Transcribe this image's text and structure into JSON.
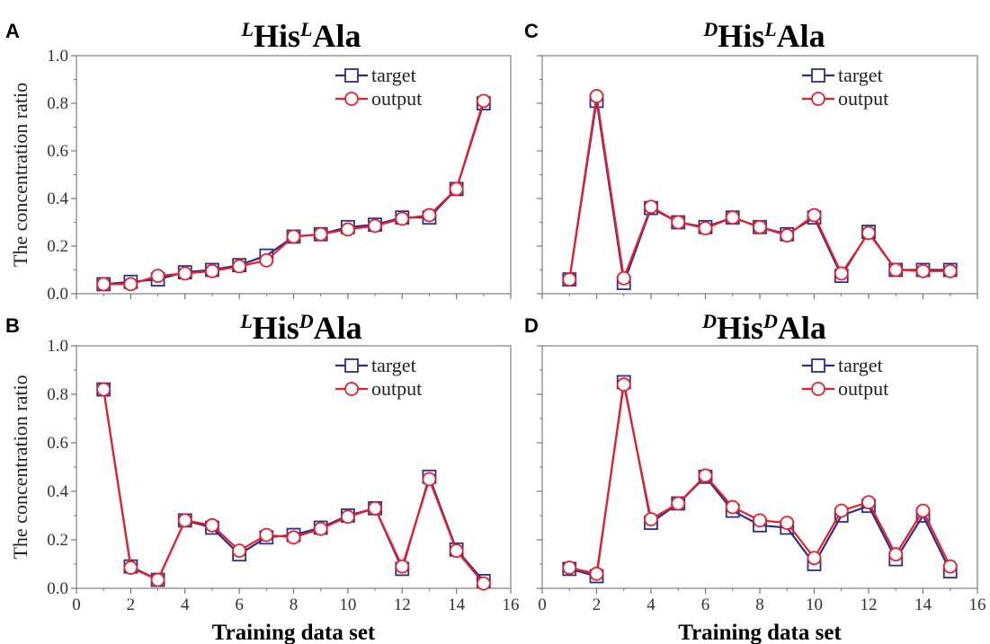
{
  "figure": {
    "shared_ylabel": "The concentration ratio",
    "shared_xlabel": "Training data set"
  },
  "chart_data": [
    {
      "panel": "A",
      "type": "line",
      "title": {
        "sup1": "L",
        "base1": "His",
        "sup2": "L",
        "base2": "Ala"
      },
      "xlabel": "",
      "ylabel": "The concentration ratio",
      "xlim": [
        0,
        16
      ],
      "ylim": [
        0,
        1.0
      ],
      "xticks": [
        "0",
        "2",
        "4",
        "6",
        "8",
        "10",
        "12",
        "14",
        "16"
      ],
      "yticks": [
        "0.0",
        "0.2",
        "0.4",
        "0.6",
        "0.8",
        "1.0"
      ],
      "show_xtick_labels": false,
      "show_ytick_labels": true,
      "show_ylabel": true,
      "show_xlabel": false,
      "legend": "top-right",
      "grid": false,
      "x": [
        1,
        2,
        3,
        4,
        5,
        6,
        7,
        8,
        9,
        10,
        11,
        12,
        13,
        14,
        15
      ],
      "series": [
        {
          "name": "target",
          "marker": "square",
          "color": "#2b2d8f",
          "values": [
            0.04,
            0.05,
            0.06,
            0.09,
            0.1,
            0.12,
            0.16,
            0.24,
            0.25,
            0.28,
            0.29,
            0.32,
            0.32,
            0.44,
            0.8
          ]
        },
        {
          "name": "output",
          "marker": "circle",
          "color": "#e8202a",
          "values": [
            0.04,
            0.04,
            0.075,
            0.085,
            0.095,
            0.115,
            0.14,
            0.24,
            0.25,
            0.27,
            0.285,
            0.315,
            0.33,
            0.44,
            0.81
          ]
        }
      ]
    },
    {
      "panel": "C",
      "type": "line",
      "title": {
        "sup1": "D",
        "base1": "His",
        "sup2": "L",
        "base2": "Ala"
      },
      "xlabel": "",
      "ylabel": "",
      "xlim": [
        0,
        16
      ],
      "ylim": [
        0,
        1.0
      ],
      "xticks": [
        "0",
        "2",
        "4",
        "6",
        "8",
        "10",
        "12",
        "14",
        "16"
      ],
      "yticks": [
        "0.0",
        "0.2",
        "0.4",
        "0.6",
        "0.8",
        "1.0"
      ],
      "show_xtick_labels": false,
      "show_ytick_labels": false,
      "show_ylabel": false,
      "show_xlabel": false,
      "legend": "top-right",
      "grid": false,
      "x": [
        1,
        2,
        3,
        4,
        5,
        6,
        7,
        8,
        9,
        10,
        11,
        12,
        13,
        14,
        15
      ],
      "series": [
        {
          "name": "target",
          "marker": "square",
          "color": "#2b2d8f",
          "values": [
            0.06,
            0.81,
            0.045,
            0.36,
            0.3,
            0.28,
            0.32,
            0.28,
            0.25,
            0.32,
            0.075,
            0.26,
            0.1,
            0.1,
            0.1
          ]
        },
        {
          "name": "output",
          "marker": "circle",
          "color": "#e8202a",
          "values": [
            0.06,
            0.83,
            0.065,
            0.365,
            0.3,
            0.275,
            0.32,
            0.28,
            0.245,
            0.33,
            0.085,
            0.255,
            0.1,
            0.095,
            0.095
          ]
        }
      ]
    },
    {
      "panel": "B",
      "type": "line",
      "title": {
        "sup1": "L",
        "base1": "His",
        "sup2": "D",
        "base2": "Ala"
      },
      "xlabel": "Training data set",
      "ylabel": "The concentration ratio",
      "xlim": [
        0,
        16
      ],
      "ylim": [
        0,
        1.0
      ],
      "xticks": [
        "0",
        "2",
        "4",
        "6",
        "8",
        "10",
        "12",
        "14",
        "16"
      ],
      "yticks": [
        "0.0",
        "0.2",
        "0.4",
        "0.6",
        "0.8",
        "1.0"
      ],
      "show_xtick_labels": true,
      "show_ytick_labels": true,
      "show_ylabel": true,
      "show_xlabel": true,
      "legend": "top-right",
      "grid": false,
      "x": [
        1,
        2,
        3,
        4,
        5,
        6,
        7,
        8,
        9,
        10,
        11,
        12,
        13,
        14,
        15
      ],
      "series": [
        {
          "name": "target",
          "marker": "square",
          "color": "#2b2d8f",
          "values": [
            0.82,
            0.09,
            0.035,
            0.28,
            0.25,
            0.14,
            0.21,
            0.22,
            0.25,
            0.3,
            0.33,
            0.08,
            0.46,
            0.16,
            0.03
          ]
        },
        {
          "name": "output",
          "marker": "circle",
          "color": "#e8202a",
          "values": [
            0.82,
            0.085,
            0.035,
            0.28,
            0.26,
            0.155,
            0.22,
            0.21,
            0.245,
            0.295,
            0.33,
            0.09,
            0.45,
            0.155,
            0.02
          ]
        }
      ]
    },
    {
      "panel": "D",
      "type": "line",
      "title": {
        "sup1": "D",
        "base1": "His",
        "sup2": "D",
        "base2": "Ala"
      },
      "xlabel": "Training data set",
      "ylabel": "",
      "xlim": [
        0,
        16
      ],
      "ylim": [
        0,
        1.0
      ],
      "xticks": [
        "0",
        "2",
        "4",
        "6",
        "8",
        "10",
        "12",
        "14",
        "16"
      ],
      "yticks": [
        "0.0",
        "0.2",
        "0.4",
        "0.6",
        "0.8",
        "1.0"
      ],
      "show_xtick_labels": true,
      "show_ytick_labels": false,
      "show_ylabel": false,
      "show_xlabel": true,
      "legend": "top-right",
      "grid": false,
      "x": [
        1,
        2,
        3,
        4,
        5,
        6,
        7,
        8,
        9,
        10,
        11,
        12,
        13,
        14,
        15
      ],
      "series": [
        {
          "name": "target",
          "marker": "square",
          "color": "#2b2d8f",
          "values": [
            0.08,
            0.05,
            0.85,
            0.27,
            0.35,
            0.46,
            0.32,
            0.26,
            0.25,
            0.1,
            0.3,
            0.34,
            0.12,
            0.3,
            0.07
          ]
        },
        {
          "name": "output",
          "marker": "circle",
          "color": "#e8202a",
          "values": [
            0.085,
            0.06,
            0.84,
            0.285,
            0.35,
            0.465,
            0.335,
            0.28,
            0.27,
            0.125,
            0.32,
            0.355,
            0.14,
            0.32,
            0.09
          ]
        }
      ]
    }
  ]
}
